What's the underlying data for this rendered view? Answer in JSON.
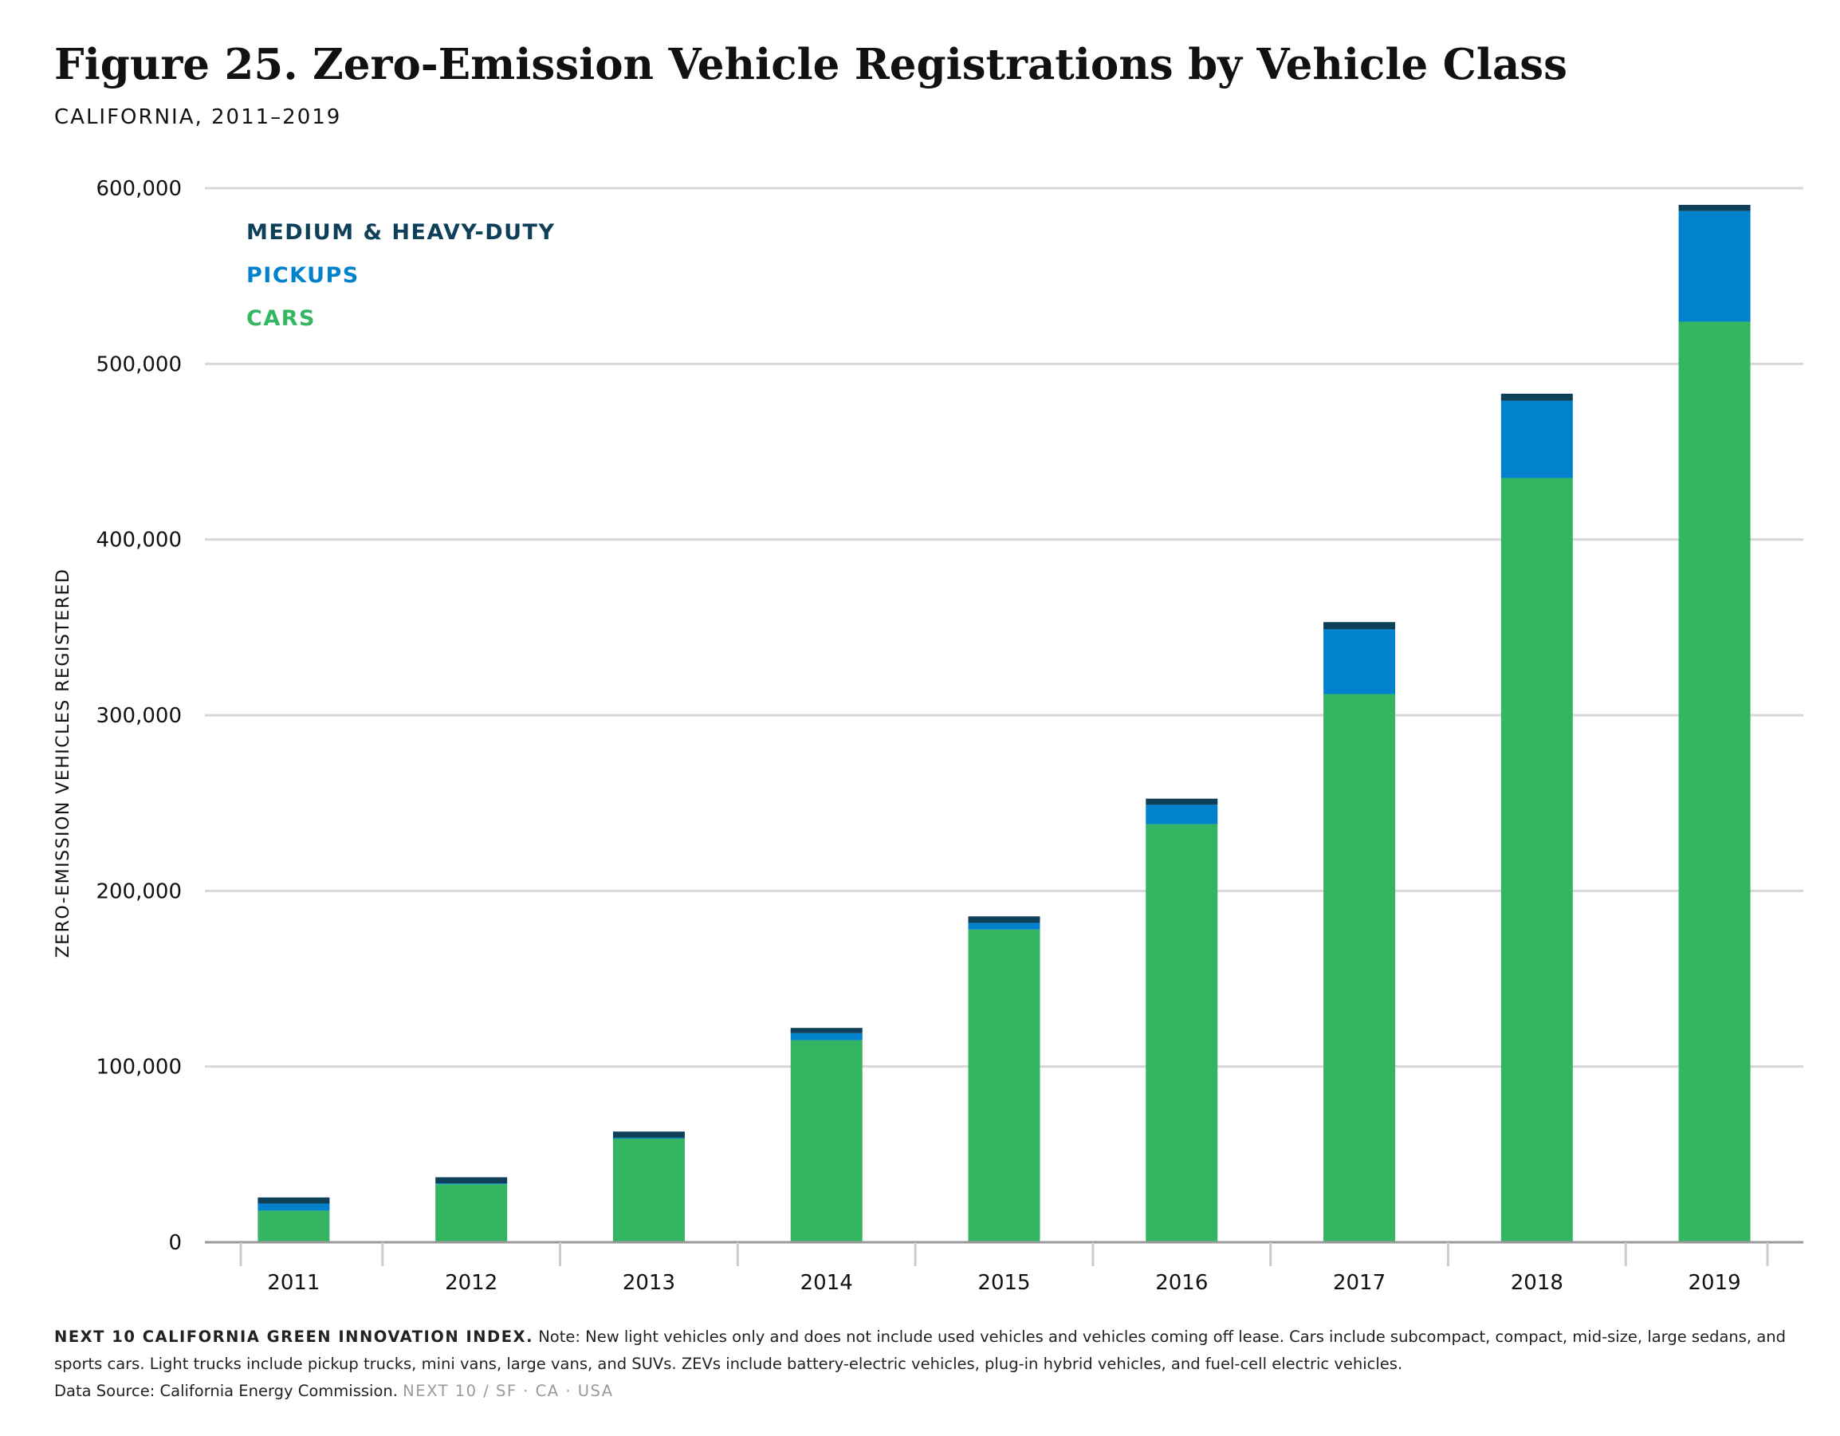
{
  "header": {
    "title": "Figure 25. Zero-Emission Vehicle Registrations by Vehicle Class",
    "subtitle": "CALIFORNIA, 2011–2019"
  },
  "chart_data": {
    "type": "bar",
    "stacked": true,
    "categories": [
      "2011",
      "2012",
      "2013",
      "2014",
      "2015",
      "2016",
      "2017",
      "2018",
      "2019"
    ],
    "series": [
      {
        "name": "CARS",
        "color": "#34b561",
        "values": [
          18000,
          33000,
          59000,
          115000,
          178000,
          238000,
          312000,
          435000,
          524000
        ]
      },
      {
        "name": "PICKUPS",
        "color": "#0281cc",
        "values": [
          4000,
          500,
          500,
          4000,
          3800,
          11000,
          37000,
          44000,
          63000
        ]
      },
      {
        "name": "MEDIUM & HEAVY-DUTY",
        "color": "#0e4159",
        "values": [
          3500,
          3500,
          3500,
          3000,
          3700,
          3500,
          4000,
          4000,
          3500
        ]
      }
    ],
    "ylabel": "ZERO-EMISSION VEHICLES REGISTERED",
    "xlabel": "",
    "ylim": [
      0,
      600000
    ],
    "yticks": [
      0,
      100000,
      200000,
      300000,
      400000,
      500000,
      600000
    ],
    "ytick_labels": [
      "0",
      "100,000",
      "200,000",
      "300,000",
      "400,000",
      "500,000",
      "600,000"
    ],
    "grid": true,
    "legend_position": "top-left",
    "legend_order": [
      "MEDIUM & HEAVY-DUTY",
      "PICKUPS",
      "CARS"
    ]
  },
  "footer": {
    "source_label": "NEXT 10 CALIFORNIA GREEN INNOVATION INDEX.",
    "note": "Note: New light vehicles only and does not include used vehicles and vehicles coming off lease. Cars include subcompact, compact, mid-size, large sedans, and sports cars. Light trucks include pickup trucks, mini vans, large vans, and SUVs. ZEVs include battery-electric vehicles, plug-in hybrid vehicles, and fuel-cell electric vehicles.",
    "data_source": "Data Source: California Energy Commission.",
    "org": "NEXT 10  /  SF · CA · USA"
  }
}
